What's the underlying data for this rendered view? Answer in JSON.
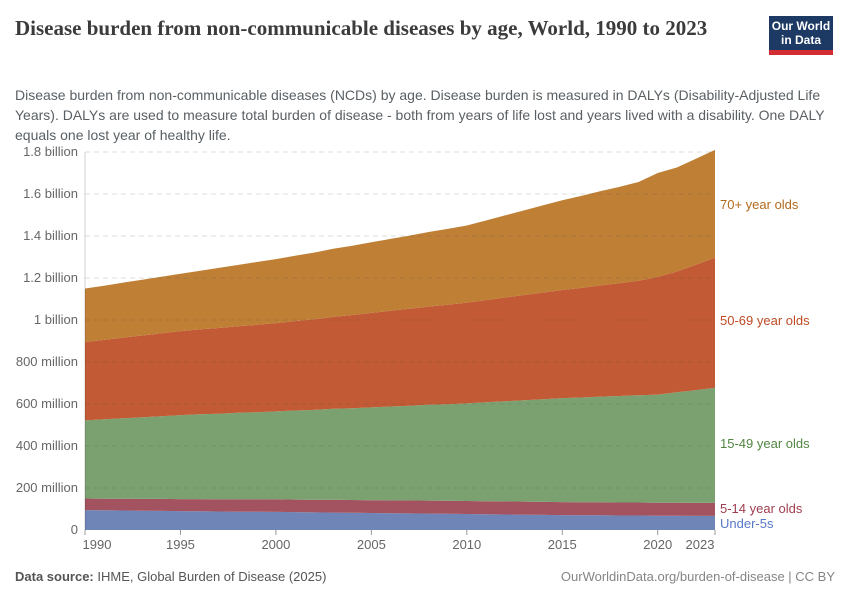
{
  "header": {
    "title": "Disease burden from non-communicable diseases by age, World, 1990 to 2023",
    "subtitle": "Disease burden from non-communicable diseases (NCDs) by age. Disease burden is measured in DALYs (Disability-Adjusted Life Years). DALYs are used to measure total burden of disease - both from years of life lost and years lived with a disability. One DALY equals one lost year of healthy life.",
    "logo": {
      "line1": "Our World",
      "line2": "in Data",
      "bg_color": "#1c3a63",
      "bar_color": "#d12d33"
    }
  },
  "chart_data": {
    "type": "area",
    "stacked": true,
    "title": "Disease burden from non-communicable diseases by age, World, 1990 to 2023",
    "xlabel": "",
    "ylabel": "DALYs",
    "xlim": [
      1990,
      2023
    ],
    "ylim": [
      0,
      1800
    ],
    "grid": "dashed",
    "legend_position": "right",
    "values_unit": "millions of DALYs",
    "x": [
      1990,
      1991,
      1992,
      1993,
      1994,
      1995,
      1996,
      1997,
      1998,
      1999,
      2000,
      2001,
      2002,
      2003,
      2004,
      2005,
      2006,
      2007,
      2008,
      2009,
      2010,
      2011,
      2012,
      2013,
      2014,
      2015,
      2016,
      2017,
      2018,
      2019,
      2020,
      2021,
      2022,
      2023
    ],
    "x_ticks": [
      1990,
      1995,
      2000,
      2005,
      2010,
      2015,
      2020,
      2023
    ],
    "y_ticks": [
      {
        "value": 0,
        "label": "0"
      },
      {
        "value": 200,
        "label": "200 million"
      },
      {
        "value": 400,
        "label": "400 million"
      },
      {
        "value": 600,
        "label": "600 million"
      },
      {
        "value": 800,
        "label": "800 million"
      },
      {
        "value": 1000,
        "label": "1 billion"
      },
      {
        "value": 1200,
        "label": "1.2 billion"
      },
      {
        "value": 1400,
        "label": "1.4 billion"
      },
      {
        "value": 1600,
        "label": "1.6 billion"
      },
      {
        "value": 1800,
        "label": "1.8 billion"
      }
    ],
    "series": [
      {
        "name": "Under-5s",
        "color": "#7085b7",
        "label_color": "#5778c7",
        "values": [
          95,
          94,
          93,
          92,
          91,
          90,
          89,
          88,
          87,
          87,
          86,
          85,
          84,
          83,
          82,
          81,
          80,
          79,
          78,
          77,
          76,
          75,
          74,
          73,
          72,
          71,
          70,
          70,
          69,
          69,
          68,
          68,
          67,
          67
        ]
      },
      {
        "name": "5-14 year olds",
        "color": "#a3535f",
        "label_color": "#a03e4f",
        "values": [
          55,
          55,
          56,
          56,
          57,
          57,
          58,
          58,
          59,
          59,
          60,
          60,
          60,
          61,
          61,
          61,
          61,
          62,
          62,
          62,
          62,
          62,
          62,
          62,
          62,
          62,
          62,
          62,
          62,
          62,
          62,
          62,
          62,
          62
        ]
      },
      {
        "name": "15-49 year olds",
        "color": "#7ba171",
        "label_color": "#538543",
        "values": [
          372,
          378,
          383,
          389,
          394,
          400,
          404,
          408,
          412,
          415,
          419,
          424,
          428,
          433,
          437,
          442,
          447,
          451,
          456,
          460,
          465,
          471,
          477,
          483,
          489,
          495,
          499,
          503,
          507,
          511,
          515,
          526,
          537,
          548
        ]
      },
      {
        "name": "50-69 year olds",
        "color": "#c25a35",
        "label_color": "#bf4a23",
        "values": [
          373,
          378,
          384,
          389,
          395,
          400,
          404,
          408,
          412,
          416,
          420,
          426,
          432,
          438,
          444,
          450,
          456,
          462,
          468,
          474,
          480,
          487,
          494,
          501,
          508,
          515,
          522,
          530,
          537,
          545,
          560,
          575,
          597,
          620
        ]
      },
      {
        "name": "70+ year olds",
        "color": "#bf8036",
        "label_color": "#b16a1d",
        "values": [
          255,
          258,
          262,
          266,
          269,
          273,
          279,
          286,
          292,
          299,
          305,
          311,
          317,
          324,
          330,
          336,
          342,
          348,
          355,
          361,
          367,
          379,
          391,
          403,
          415,
          427,
          438,
          449,
          459,
          470,
          495,
          495,
          505,
          513
        ]
      }
    ]
  },
  "footer": {
    "source_label": "Data source:",
    "source_text": " IHME, Global Burden of Disease (2025)",
    "credit": "OurWorldinData.org/burden-of-disease | CC BY"
  }
}
